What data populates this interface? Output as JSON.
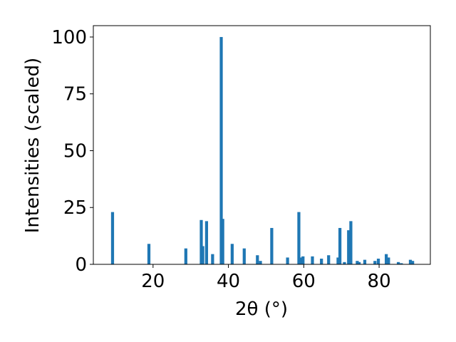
{
  "chart_data": {
    "type": "bar",
    "color": "#1f77b4",
    "bar_width": 0.8,
    "xlabel": "2θ (°)",
    "ylabel": "Intensities (scaled)",
    "x": [
      9.25,
      18.9,
      28.7,
      32.8,
      33.2,
      34.2,
      35.8,
      38.1,
      38.5,
      41.0,
      44.2,
      47.7,
      48.5,
      51.5,
      55.7,
      58.7,
      59.2,
      59.8,
      62.3,
      64.7,
      66.6,
      69.1,
      69.6,
      70.8,
      71.9,
      72.5,
      74.2,
      74.7,
      76.2,
      78.9,
      79.8,
      81.9,
      82.5,
      85.1,
      85.9,
      88.3,
      88.9
    ],
    "values": [
      23,
      9,
      7,
      19.5,
      8,
      19,
      4.5,
      100,
      20,
      9,
      7,
      4,
      1.5,
      16,
      3,
      23,
      3,
      3.5,
      3.5,
      2.5,
      4,
      3,
      16,
      1,
      15,
      19,
      1.5,
      1,
      2,
      1.5,
      2.5,
      4.5,
      3,
      1,
      0.5,
      2,
      1.5
    ],
    "xlim": [
      4.15,
      93.6
    ],
    "ylim": [
      0,
      105
    ],
    "xticks": [
      20,
      40,
      60,
      80
    ],
    "yticks": [
      0,
      25,
      50,
      75,
      100
    ]
  }
}
